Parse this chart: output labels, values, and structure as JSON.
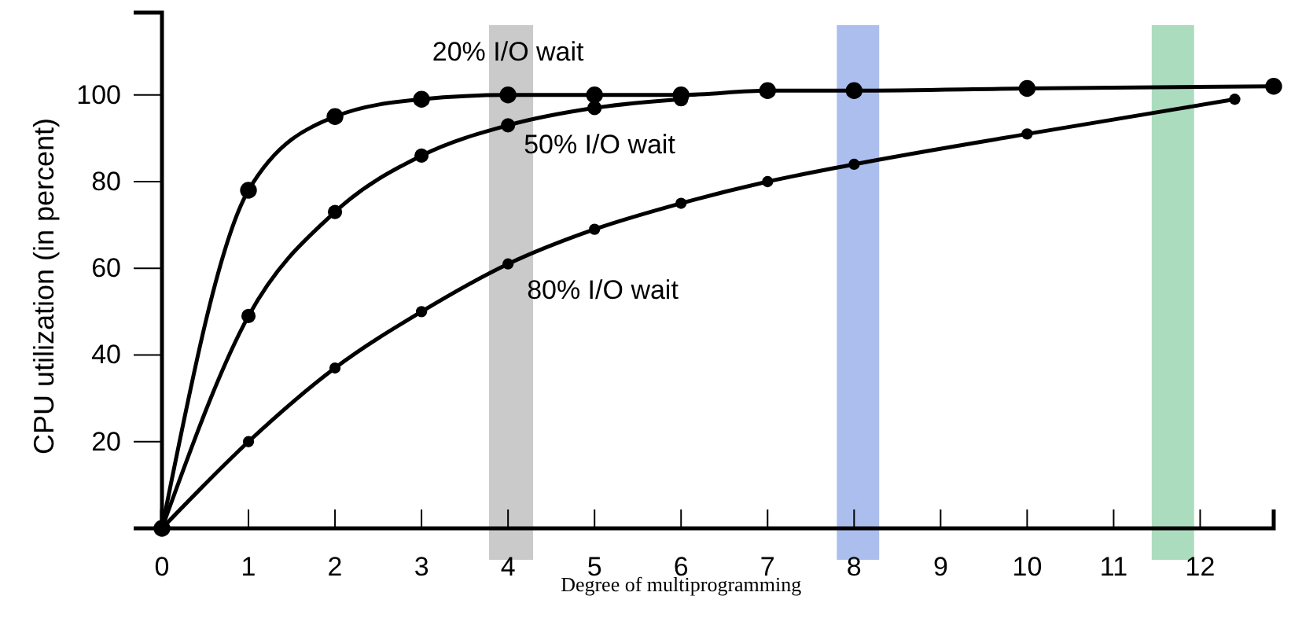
{
  "chart_data": {
    "type": "line",
    "xlabel": "Degree of multiprogramming",
    "ylabel": "CPU utilization (in percent)",
    "xlim": [
      0,
      12.85
    ],
    "ylim": [
      0,
      119
    ],
    "xticks": [
      0,
      1,
      2,
      3,
      4,
      5,
      6,
      7,
      8,
      9,
      10,
      11,
      12
    ],
    "yticks": [
      20,
      40,
      60,
      80,
      100
    ],
    "marker": "circle",
    "grid": false,
    "legend": false,
    "series": [
      {
        "name": "20% I/O wait",
        "color": "#000000",
        "x": [
          0,
          1,
          2,
          3,
          4,
          5,
          6,
          7,
          8,
          10,
          12.85
        ],
        "values": [
          0,
          78,
          95,
          99,
          100,
          100,
          100,
          101,
          101,
          101.5,
          102
        ]
      },
      {
        "name": "50% I/O wait",
        "color": "#000000",
        "x": [
          0,
          1,
          2,
          3,
          4,
          5,
          6
        ],
        "values": [
          0,
          49,
          73,
          86,
          93,
          97,
          99
        ]
      },
      {
        "name": "80% I/O wait",
        "color": "#000000",
        "x": [
          0,
          1,
          2,
          3,
          4,
          5,
          6,
          7,
          8,
          10,
          12.4
        ],
        "values": [
          0,
          20,
          37,
          50,
          61,
          69,
          75,
          80,
          84,
          91,
          99
        ]
      }
    ],
    "bands": [
      {
        "axis": "x",
        "from": 3.78,
        "to": 4.29,
        "color": "#b8b8b8"
      },
      {
        "axis": "x",
        "from": 7.8,
        "to": 8.29,
        "color": "#8fa8e8"
      },
      {
        "axis": "x",
        "from": 11.44,
        "to": 11.93,
        "color": "#8fd0a8"
      }
    ]
  }
}
